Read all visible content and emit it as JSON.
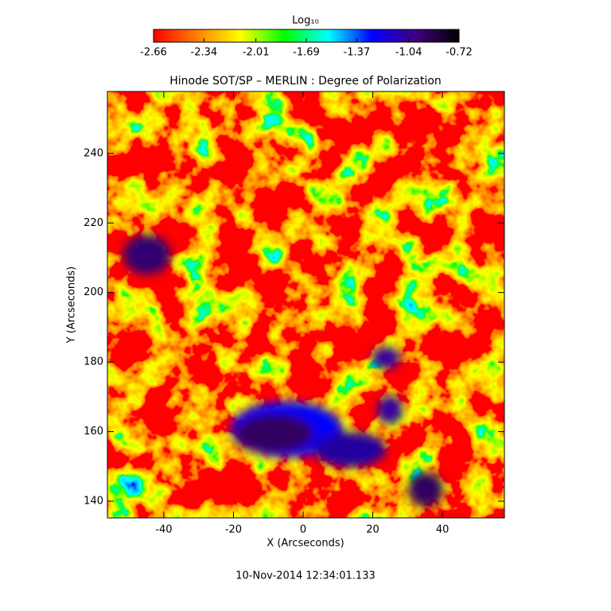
{
  "chart_data": {
    "type": "heatmap",
    "title": "Hinode SOT/SP – MERLIN : Degree of Polarization",
    "x_label": "X (Arcseconds)",
    "y_label": "Y (Arcseconds)",
    "xlim": [
      -56.2,
      57.8
    ],
    "xticks": [
      -40,
      -20,
      0,
      20,
      40
    ],
    "ylim": [
      135.2,
      257.8
    ],
    "yticks": [
      140,
      160,
      180,
      200,
      220,
      240
    ],
    "colorbar": {
      "label": "Log₁₀",
      "lim": [
        -2.66,
        -0.72
      ],
      "ticks": [
        -2.66,
        -2.34,
        -2.01,
        -1.69,
        -1.37,
        -1.04,
        -0.72
      ],
      "colormap": [
        "#ff0000",
        "#ff8000",
        "#ffff00",
        "#00ff00",
        "#00ffff",
        "#0000ff",
        "#400080",
        "#000000"
      ]
    },
    "footer": "10-Nov-2014 12:34:01.133"
  }
}
